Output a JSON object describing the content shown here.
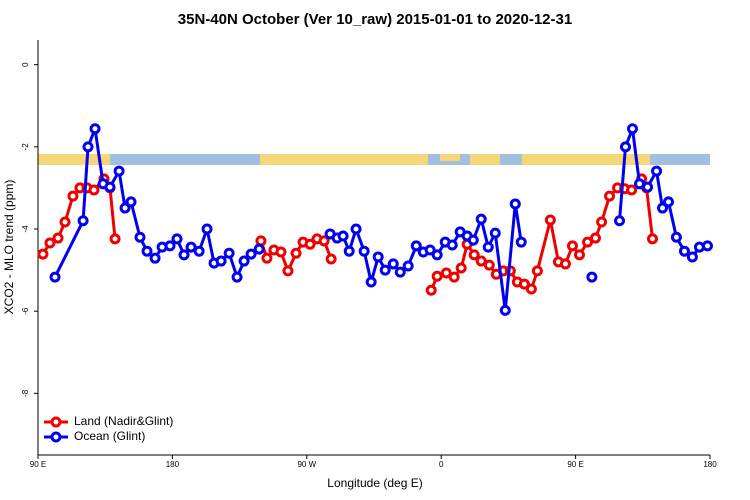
{
  "chart_data": {
    "type": "line",
    "title": "35N-40N October (Ver 10_raw)   2015-01-01 to 2020-12-31",
    "xlabel": "Longitude (deg E)",
    "ylabel": "XCO2 - MLO trend (ppm)",
    "xlim": [
      90,
      540
    ],
    "xticks": [
      {
        "value": 90,
        "label": "90 E"
      },
      {
        "value": 180,
        "label": "180"
      },
      {
        "value": 270,
        "label": "90 W"
      },
      {
        "value": 360,
        "label": "0"
      },
      {
        "value": 450,
        "label": "90 E"
      },
      {
        "value": 540,
        "label": "180"
      }
    ],
    "ylim": [
      -9.5,
      0.6
    ],
    "yticks": [
      0,
      -2,
      -4,
      -6,
      -8
    ],
    "legend": "bottom-left",
    "series": [
      {
        "name": "Land (Nadir&Glint)",
        "color": "#ee0000",
        "x": [
          93.3,
          98.0,
          103.4,
          108.1,
          113.4,
          118.1,
          122.8,
          127.5,
          134.2,
          138.2,
          141.6,
          null,
          239.3,
          243.3,
          248.0,
          252.7,
          257.4,
          262.8,
          267.5,
          272.2,
          276.9,
          281.6,
          286.3,
          null,
          353.3,
          357.3,
          363.4,
          368.7,
          373.4,
          377.4,
          382.1,
          386.8,
          392.2,
          396.9,
          401.6,
          406.3,
          411.0,
          415.7,
          420.4,
          424.4,
          433.1,
          438.5,
          443.2,
          447.9,
          452.6,
          458.0,
          463.3,
          467.4,
          472.7,
          478.1,
          482.8,
          487.5,
          494.2,
          497.5,
          501.5
        ],
        "values": [
          -4.61,
          -4.34,
          -4.22,
          -3.83,
          -3.2,
          -3.0,
          -3.0,
          -3.05,
          -2.78,
          -3.0,
          -4.24,
          null,
          -4.29,
          -4.71,
          -4.51,
          -4.56,
          -5.02,
          -4.59,
          -4.32,
          -4.37,
          -4.24,
          -4.29,
          -4.73,
          null,
          -5.49,
          -5.15,
          -5.07,
          -5.17,
          -4.95,
          -4.37,
          -4.63,
          -4.78,
          -4.88,
          -5.1,
          -5.02,
          -5.02,
          -5.29,
          -5.34,
          -5.46,
          -5.02,
          -3.78,
          -4.8,
          -4.85,
          -4.41,
          -4.63,
          -4.32,
          -4.22,
          -3.83,
          -3.2,
          -3.0,
          -3.02,
          -3.05,
          -2.78,
          -3.0,
          -4.24
        ]
      },
      {
        "name": "Ocean (Glint)",
        "color": "#0000ee",
        "x": [
          101.4,
          120.2,
          123.5,
          128.2,
          133.6,
          138.2,
          144.3,
          148.3,
          152.3,
          158.3,
          163.0,
          168.4,
          173.1,
          178.4,
          183.1,
          187.8,
          192.5,
          197.9,
          203.2,
          207.9,
          212.6,
          218.0,
          223.3,
          228.0,
          232.7,
          238.1,
          null,
          285.6,
          290.3,
          294.3,
          298.4,
          303.0,
          308.4,
          313.1,
          317.8,
          322.5,
          327.9,
          332.6,
          337.9,
          343.3,
          348.0,
          352.6,
          357.3,
          362.7,
          367.4,
          372.7,
          377.4,
          381.5,
          386.8,
          391.5,
          396.2,
          402.9,
          409.6,
          413.6,
          null,
          460.9,
          null,
          479.4,
          483.4,
          488.1,
          492.8,
          498.2,
          504.2,
          508.2,
          512.2,
          517.5,
          522.9,
          528.2,
          532.9,
          538.3
        ],
        "values": [
          -5.17,
          -3.8,
          -2.0,
          -1.56,
          -2.9,
          -2.98,
          -2.59,
          -3.49,
          -3.34,
          -4.2,
          -4.54,
          -4.71,
          -4.44,
          -4.41,
          -4.24,
          -4.63,
          -4.44,
          -4.54,
          -4.0,
          -4.83,
          -4.78,
          -4.59,
          -5.17,
          -4.78,
          -4.61,
          -4.49,
          null,
          -4.12,
          -4.22,
          -4.17,
          -4.54,
          -4.0,
          -4.54,
          -5.29,
          -4.68,
          -5.0,
          -4.85,
          -5.05,
          -4.9,
          -4.41,
          -4.56,
          -4.51,
          -4.63,
          -4.32,
          -4.39,
          -4.07,
          -4.17,
          -4.27,
          -3.76,
          -4.44,
          -4.1,
          -5.98,
          -3.39,
          -4.32,
          null,
          -5.17,
          null,
          -3.8,
          -2.0,
          -1.56,
          -2.9,
          -2.98,
          -2.59,
          -3.49,
          -3.34,
          -4.2,
          -4.54,
          -4.68,
          -4.44,
          -4.41
        ]
      }
    ]
  }
}
